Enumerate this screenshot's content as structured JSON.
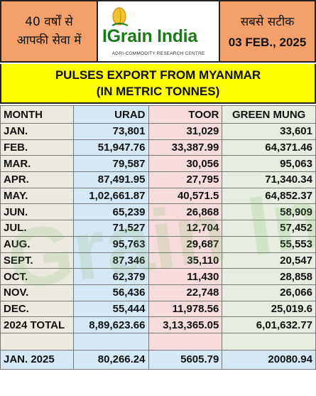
{
  "header": {
    "left_line1": "40 वर्षों से",
    "left_line2": "आपकी सेवा में",
    "logo_name": "IGrain India",
    "logo_tagline": "AGRI-COMMODITY RESEARCH CENTRE",
    "right_line1": "सबसे सटीक",
    "date": "03 FEB., 2025",
    "accent_color": "#f4a06a",
    "brand_color": "#1a7a1a"
  },
  "title": {
    "line1": "PULSES EXPORT FROM MYANMAR",
    "line2": "(IN METRIC TONNES)",
    "band_color": "#ffff00"
  },
  "watermark": "Grain India",
  "table": {
    "headers": [
      "MONTH",
      "URAD",
      "TOOR",
      "GREEN MUNG"
    ],
    "rows": [
      {
        "month": "JAN.",
        "urad": "73,801",
        "toor": "31,029",
        "green_mung": "33,601"
      },
      {
        "month": "FEB.",
        "urad": "51,947.76",
        "toor": "33,387.99",
        "green_mung": "64,371.46"
      },
      {
        "month": "MAR.",
        "urad": "79,587",
        "toor": "30,056",
        "green_mung": "95,063"
      },
      {
        "month": "APR.",
        "urad": "87,491.95",
        "toor": "27,795",
        "green_mung": "71,340.34"
      },
      {
        "month": "MAY.",
        "urad": "1,02,661.87",
        "toor": "40,571.5",
        "green_mung": "64,852.37"
      },
      {
        "month": "JUN.",
        "urad": "65,239",
        "toor": "26,868",
        "green_mung": "58,909"
      },
      {
        "month": "JUL.",
        "urad": "71,527",
        "toor": "12,704",
        "green_mung": "57,452"
      },
      {
        "month": "AUG.",
        "urad": "95,763",
        "toor": "29,687",
        "green_mung": "55,553"
      },
      {
        "month": "SEPT.",
        "urad": "87,346",
        "toor": "35,110",
        "green_mung": "20,547"
      },
      {
        "month": "OCT.",
        "urad": "62,379",
        "toor": "11,430",
        "green_mung": "28,858"
      },
      {
        "month": "NOV.",
        "urad": "56,436",
        "toor": "22,748",
        "green_mung": "26,066"
      },
      {
        "month": "DEC.",
        "urad": "55,444",
        "toor": "11,978.56",
        "green_mung": "25,019.6"
      }
    ],
    "total": {
      "month": "2024 TOTAL",
      "urad": "8,89,623.66",
      "toor": "3,13,365.05",
      "green_mung": "6,01,632.77"
    },
    "latest": {
      "month": "JAN. 2025",
      "urad": "80,266.24",
      "toor": "5605.79",
      "green_mung": "20080.94"
    }
  }
}
